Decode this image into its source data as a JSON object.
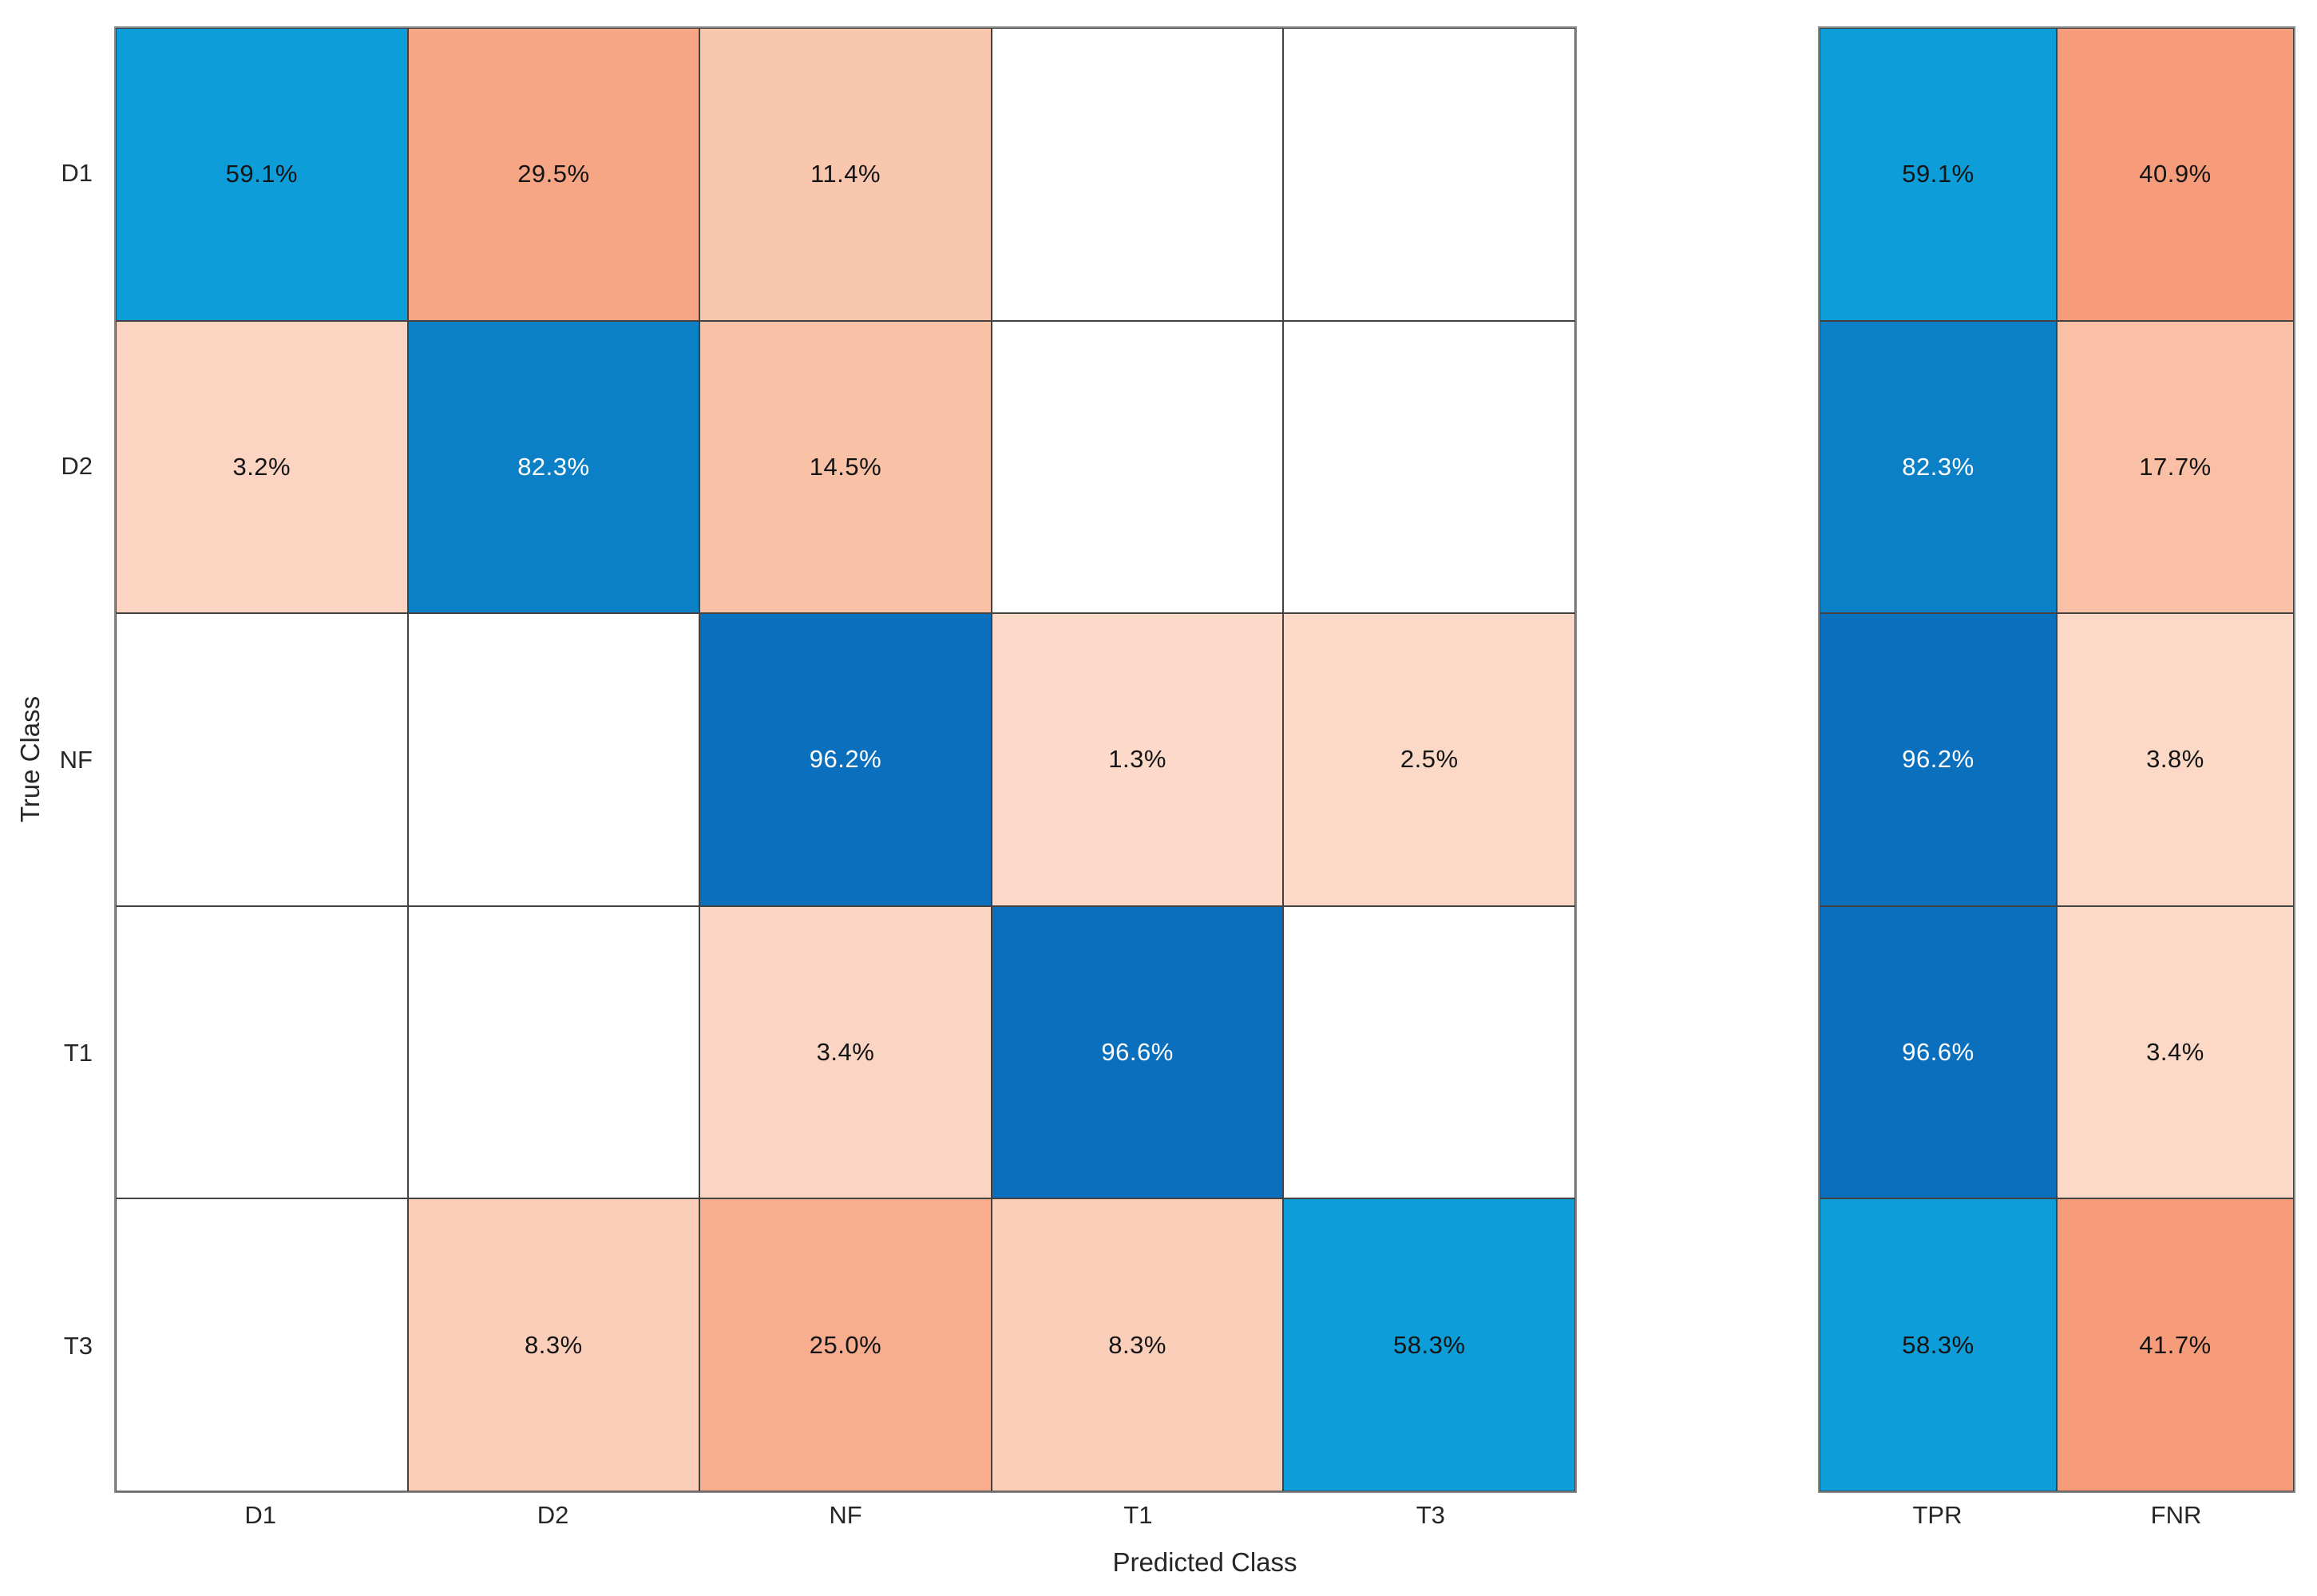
{
  "chart_data": {
    "type": "heatmap",
    "subtype": "confusion-matrix-row-normalized",
    "title": "",
    "xlabel": "Predicted Class",
    "ylabel": "True Class",
    "classes": [
      "D1",
      "D2",
      "NF",
      "T1",
      "T3"
    ],
    "matrix_row_percent": [
      [
        59.1,
        29.5,
        11.4,
        null,
        null
      ],
      [
        3.2,
        82.3,
        14.5,
        null,
        null
      ],
      [
        null,
        null,
        96.2,
        1.3,
        2.5
      ],
      [
        null,
        null,
        3.4,
        96.6,
        null
      ],
      [
        null,
        8.3,
        25.0,
        8.3,
        58.3
      ]
    ],
    "cell_colors": [
      [
        "#0d9dd9",
        "#f6a685",
        "#f9c6ae",
        null,
        null
      ],
      [
        "#fbd4c2",
        "#0c80c6",
        "#f9c2a7",
        null,
        null
      ],
      [
        null,
        null,
        "#0a70bd",
        "#fcd9c9",
        "#fcd8c7"
      ],
      [
        null,
        null,
        "#fbd5c3",
        "#0a70bd",
        null
      ],
      [
        null,
        "#fbceb9",
        "#f7ad8e",
        "#fbceb9",
        "#0d9dd9"
      ]
    ],
    "summary": {
      "columns": [
        "TPR",
        "FNR"
      ],
      "tpr": [
        59.1,
        82.3,
        96.2,
        96.6,
        58.3
      ],
      "fnr": [
        40.9,
        17.7,
        3.8,
        3.4,
        41.7
      ],
      "tpr_colors": [
        "#0d9dd9",
        "#0c80c6",
        "#0a70bd",
        "#0a70bd",
        "#0d9dd9"
      ],
      "fnr_colors": [
        "#f69c7a",
        "#f9c0a5",
        "#fcd8c7",
        "#fcd8c7",
        "#f69c7a"
      ]
    },
    "value_suffix": "%",
    "value_decimals": 1,
    "empty_color": "#ffffff",
    "grid_line_color": "#424242",
    "outer_border_color": "#8a8a8a",
    "tick_label_color": "#262626",
    "dark_text_color": "#141414",
    "light_text_color": "#ffffff",
    "grid": true,
    "legend_position": "none"
  }
}
